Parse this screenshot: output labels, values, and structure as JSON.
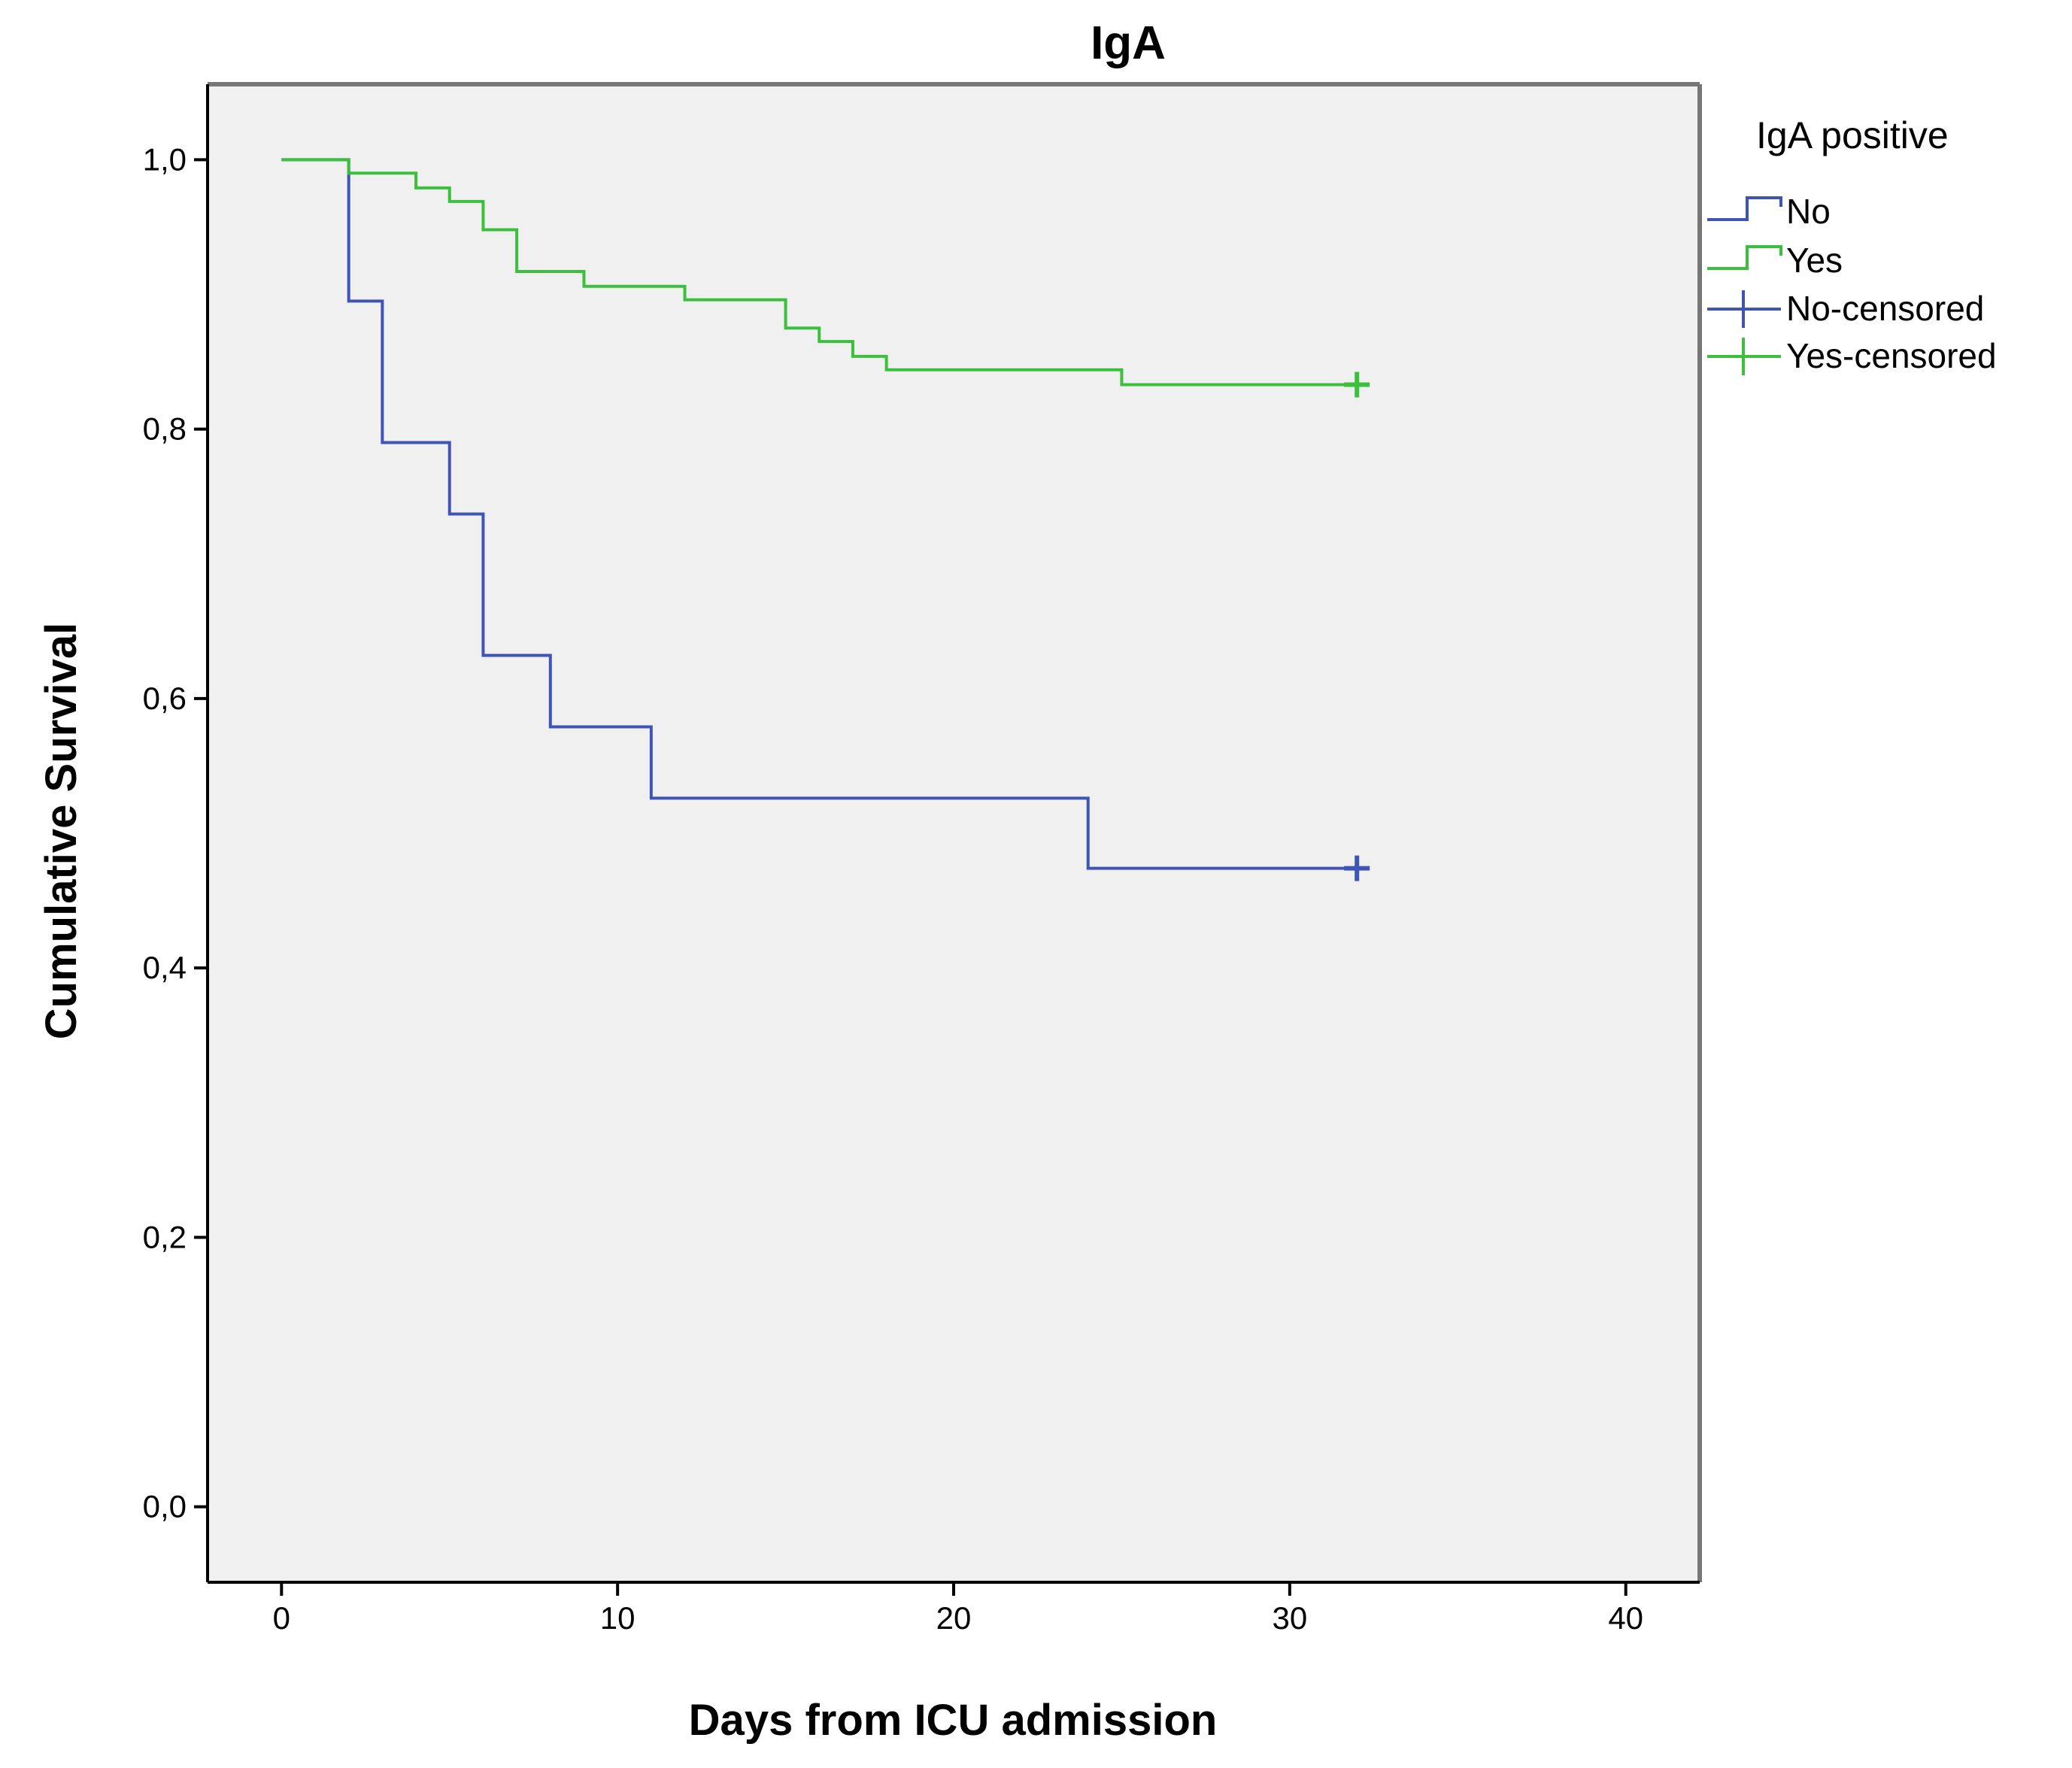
{
  "chart_data": {
    "type": "line",
    "subtype": "kaplan-meier-step",
    "title": "IgA",
    "xlabel": "Days from ICU admission",
    "ylabel": "Cumulative Survival",
    "xlim": [
      -2.2,
      42.2
    ],
    "ylim": [
      -0.056,
      1.056
    ],
    "x_ticks": [
      0,
      10,
      20,
      30,
      40
    ],
    "x_tick_labels": [
      "0",
      "10",
      "20",
      "30",
      "40"
    ],
    "y_ticks": [
      0.0,
      0.2,
      0.4,
      0.6,
      0.8,
      1.0
    ],
    "y_tick_labels": [
      "0,0",
      "0,2",
      "0,4",
      "0,6",
      "0,8",
      "1,0"
    ],
    "grid": false,
    "legend": {
      "title": "IgA positive",
      "position": "right",
      "entries": [
        "No",
        "Yes",
        "No-censored",
        "Yes-censored"
      ]
    },
    "colors": {
      "plot_background": "#f0f0f0",
      "No": "#3f55b5",
      "Yes": "#3cbf3c"
    },
    "series": [
      {
        "name": "No",
        "color": "#3f55b5",
        "points": [
          [
            0,
            1.0
          ],
          [
            2,
            0.895
          ],
          [
            3,
            0.79
          ],
          [
            5,
            0.737
          ],
          [
            6,
            0.632
          ],
          [
            8,
            0.579
          ],
          [
            11,
            0.526
          ],
          [
            24,
            0.474
          ],
          [
            32,
            0.474
          ]
        ],
        "censored": [
          [
            32,
            0.474
          ]
        ]
      },
      {
        "name": "Yes",
        "color": "#3cbf3c",
        "points": [
          [
            0,
            1.0
          ],
          [
            2,
            0.99
          ],
          [
            4,
            0.979
          ],
          [
            5,
            0.969
          ],
          [
            6,
            0.948
          ],
          [
            7,
            0.917
          ],
          [
            9,
            0.906
          ],
          [
            12,
            0.896
          ],
          [
            15,
            0.875
          ],
          [
            16,
            0.865
          ],
          [
            17,
            0.854
          ],
          [
            18,
            0.844
          ],
          [
            25,
            0.833
          ],
          [
            32,
            0.833
          ]
        ],
        "censored": [
          [
            32,
            0.833
          ]
        ]
      }
    ]
  }
}
